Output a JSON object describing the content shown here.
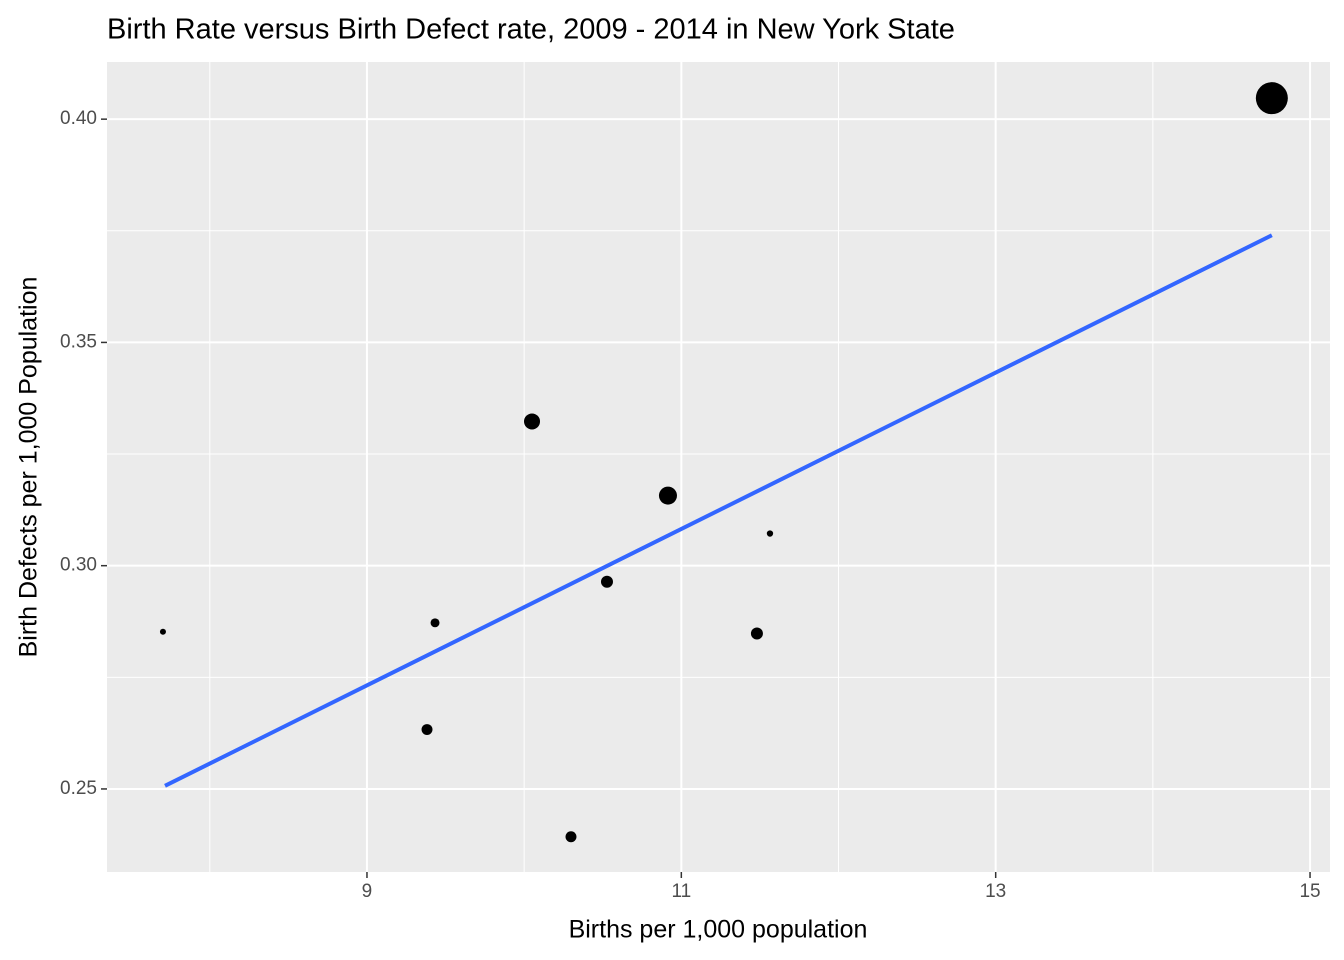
{
  "chart_data": {
    "type": "scatter",
    "title": "Birth Rate versus Birth Defect rate, 2009 - 2014 in New York State",
    "x_label": "Births per 1,000 population",
    "y_label": "Birth Defects per 1,000 Population",
    "x": [
      7.702,
      9.433,
      9.382,
      10.05,
      10.298,
      10.527,
      10.915,
      11.481,
      11.564,
      14.757
    ],
    "y": [
      0.2852,
      0.2872,
      0.2633,
      0.3323,
      0.2393,
      0.2964,
      0.3157,
      0.2848,
      0.3072,
      0.4047
    ],
    "sizes": [
      9,
      20,
      30,
      64,
      30,
      36,
      81,
      36,
      10,
      256
    ],
    "color": "#000000",
    "trend": {
      "x": [
        7.715,
        14.757
      ],
      "y": [
        0.2507,
        0.374
      ],
      "color": "#3366ff"
    },
    "xlim": [
      7.346,
      15.127
    ],
    "ylim": [
      0.2314,
      0.4128
    ],
    "xticks": [
      9,
      11,
      13,
      15
    ],
    "yticks": [
      {
        "value": 0.25,
        "label": "0.25"
      },
      {
        "value": 0.3,
        "label": "0.30"
      },
      {
        "value": 0.35,
        "label": "0.35"
      },
      {
        "value": 0.4,
        "label": "0.40"
      }
    ],
    "grid": true,
    "background": "#ebebeb"
  }
}
